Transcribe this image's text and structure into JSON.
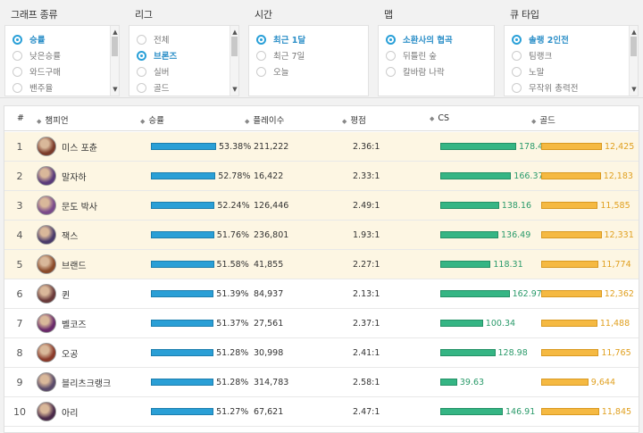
{
  "filters": [
    {
      "title": "그래프 종류",
      "options": [
        {
          "label": "승률",
          "selected": true
        },
        {
          "label": "낮은승률",
          "selected": false
        },
        {
          "label": "와드구매",
          "selected": false
        },
        {
          "label": "밴주율",
          "selected": false
        }
      ]
    },
    {
      "title": "리그",
      "options": [
        {
          "label": "전체",
          "selected": false
        },
        {
          "label": "브론즈",
          "selected": true
        },
        {
          "label": "실버",
          "selected": false
        },
        {
          "label": "골드",
          "selected": false
        }
      ]
    },
    {
      "title": "시간",
      "options": [
        {
          "label": "최근 1달",
          "selected": true
        },
        {
          "label": "최근 7일",
          "selected": false
        },
        {
          "label": "오늘",
          "selected": false
        }
      ]
    },
    {
      "title": "맵",
      "options": [
        {
          "label": "소환사의 협곡",
          "selected": true
        },
        {
          "label": "뒤틀린 숲",
          "selected": false
        },
        {
          "label": "칼바람 나락",
          "selected": false
        }
      ]
    },
    {
      "title": "큐 타입",
      "options": [
        {
          "label": "솔랭 2인전",
          "selected": true
        },
        {
          "label": "팀랭크",
          "selected": false
        },
        {
          "label": "노말",
          "selected": false
        },
        {
          "label": "무작위 총력전",
          "selected": false
        }
      ]
    }
  ],
  "table": {
    "headers": {
      "rank": "#",
      "champion": "챔피언",
      "winrate": "승률",
      "plays": "플레이수",
      "kda": "평점",
      "cs": "CS",
      "gold": "골드"
    },
    "sort_icon": "◆",
    "rows": [
      {
        "rank": "1",
        "name": "미스 포츈",
        "winrate": "53.38%",
        "winrate_value": 53.38,
        "plays": "211,222",
        "kda": "2.36:1",
        "cs": "178.40",
        "cs_value": 178.4,
        "gold": "12,425",
        "gold_value": 12425,
        "avatar_color": "#7a3a2a"
      },
      {
        "rank": "2",
        "name": "말자하",
        "winrate": "52.78%",
        "winrate_value": 52.78,
        "plays": "16,422",
        "kda": "2.33:1",
        "cs": "166.37",
        "cs_value": 166.37,
        "gold": "12,183",
        "gold_value": 12183,
        "avatar_color": "#5a3a7a"
      },
      {
        "rank": "3",
        "name": "문도 박사",
        "winrate": "52.24%",
        "winrate_value": 52.24,
        "plays": "126,446",
        "kda": "2.49:1",
        "cs": "138.16",
        "cs_value": 138.16,
        "gold": "11,585",
        "gold_value": 11585,
        "avatar_color": "#7a4a8a"
      },
      {
        "rank": "4",
        "name": "잭스",
        "winrate": "51.76%",
        "winrate_value": 51.76,
        "plays": "236,801",
        "kda": "1.93:1",
        "cs": "136.49",
        "cs_value": 136.49,
        "gold": "12,331",
        "gold_value": 12331,
        "avatar_color": "#4a3a6a"
      },
      {
        "rank": "5",
        "name": "브랜드",
        "winrate": "51.58%",
        "winrate_value": 51.58,
        "plays": "41,855",
        "kda": "2.27:1",
        "cs": "118.31",
        "cs_value": 118.31,
        "gold": "11,774",
        "gold_value": 11774,
        "avatar_color": "#8a4a2a"
      },
      {
        "rank": "6",
        "name": "퀸",
        "winrate": "51.39%",
        "winrate_value": 51.39,
        "plays": "84,937",
        "kda": "2.13:1",
        "cs": "162.97",
        "cs_value": 162.97,
        "gold": "12,362",
        "gold_value": 12362,
        "avatar_color": "#6a3a3a"
      },
      {
        "rank": "7",
        "name": "벨코즈",
        "winrate": "51.37%",
        "winrate_value": 51.37,
        "plays": "27,561",
        "kda": "2.37:1",
        "cs": "100.34",
        "cs_value": 100.34,
        "gold": "11,488",
        "gold_value": 11488,
        "avatar_color": "#6a2a6a"
      },
      {
        "rank": "8",
        "name": "오공",
        "winrate": "51.28%",
        "winrate_value": 51.28,
        "plays": "30,998",
        "kda": "2.41:1",
        "cs": "128.98",
        "cs_value": 128.98,
        "gold": "11,765",
        "gold_value": 11765,
        "avatar_color": "#8a3a2a"
      },
      {
        "rank": "9",
        "name": "블리츠크랭크",
        "winrate": "51.28%",
        "winrate_value": 51.28,
        "plays": "314,783",
        "kda": "2.58:1",
        "cs": "39.63",
        "cs_value": 39.63,
        "gold": "9,644",
        "gold_value": 9644,
        "avatar_color": "#5a4a6a"
      },
      {
        "rank": "10",
        "name": "아리",
        "winrate": "51.27%",
        "winrate_value": 51.27,
        "plays": "67,621",
        "kda": "2.47:1",
        "cs": "146.91",
        "cs_value": 146.91,
        "gold": "11,845",
        "gold_value": 11845,
        "avatar_color": "#4a2a4a"
      }
    ]
  },
  "colors": {
    "winrate_bar": "#2a9fd6",
    "cs_bar": "#35b584",
    "gold_bar": "#f5b942",
    "selected_radio": "#2aa0d8",
    "highlight_row": "#fdf6e3"
  }
}
